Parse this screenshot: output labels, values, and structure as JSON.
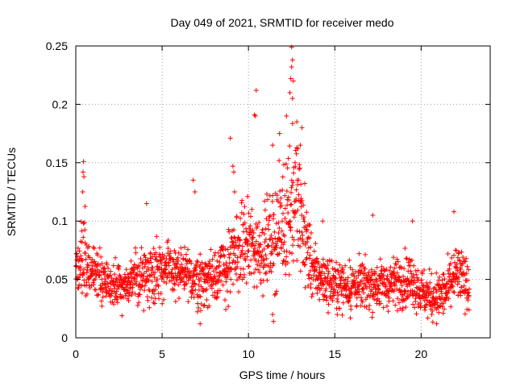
{
  "chart_data": {
    "type": "scatter",
    "title": "Day 049 of 2021, SRMTID for receiver medo",
    "xlabel": "GPS time / hours",
    "ylabel": "SRMTID / TECUs",
    "xlim": [
      0,
      24
    ],
    "ylim": [
      0,
      0.25
    ],
    "xticks": [
      "0",
      "5",
      "10",
      "15",
      "20"
    ],
    "xtick_values": [
      0,
      5,
      10,
      15,
      20
    ],
    "yticks": [
      "0",
      "0.05",
      "0.1",
      "0.15",
      "0.2",
      "0.25"
    ],
    "ytick_values": [
      0,
      0.05,
      0.1,
      0.15,
      0.2,
      0.25
    ],
    "grid": true,
    "marker": "plus",
    "color": "#ff0000",
    "series": [
      {
        "name": "medo",
        "profile_hours": [
          0,
          0.3,
          0.5,
          0.8,
          1.2,
          2,
          3,
          4,
          5,
          6,
          7,
          7.5,
          8,
          8.8,
          9.2,
          9.6,
          10,
          10.5,
          11,
          11.5,
          12,
          12.4,
          12.8,
          13.2,
          13.8,
          15,
          16,
          17,
          18,
          19,
          19.5,
          20,
          20.5,
          21,
          21.5,
          22,
          22.4,
          22.8
        ],
        "profile_median": [
          0.06,
          0.065,
          0.07,
          0.06,
          0.055,
          0.045,
          0.045,
          0.055,
          0.06,
          0.055,
          0.05,
          0.05,
          0.055,
          0.06,
          0.07,
          0.08,
          0.08,
          0.075,
          0.08,
          0.085,
          0.1,
          0.115,
          0.12,
          0.09,
          0.055,
          0.045,
          0.045,
          0.045,
          0.045,
          0.05,
          0.05,
          0.04,
          0.035,
          0.035,
          0.04,
          0.055,
          0.05,
          0.045
        ],
        "profile_spread": [
          0.018,
          0.025,
          0.03,
          0.02,
          0.02,
          0.018,
          0.018,
          0.022,
          0.022,
          0.02,
          0.02,
          0.022,
          0.022,
          0.025,
          0.03,
          0.03,
          0.03,
          0.03,
          0.03,
          0.035,
          0.045,
          0.055,
          0.05,
          0.04,
          0.02,
          0.018,
          0.018,
          0.018,
          0.018,
          0.02,
          0.02,
          0.018,
          0.018,
          0.018,
          0.02,
          0.022,
          0.02,
          0.018
        ],
        "highlights": [
          {
            "x": 0.45,
            "y": 0.151
          },
          {
            "x": 0.42,
            "y": 0.142
          },
          {
            "x": 0.47,
            "y": 0.138
          },
          {
            "x": 0.4,
            "y": 0.125
          },
          {
            "x": 6.8,
            "y": 0.135
          },
          {
            "x": 6.9,
            "y": 0.125
          },
          {
            "x": 8.95,
            "y": 0.171
          },
          {
            "x": 9.1,
            "y": 0.147
          },
          {
            "x": 9.15,
            "y": 0.142
          },
          {
            "x": 9.2,
            "y": 0.125
          },
          {
            "x": 10.45,
            "y": 0.212
          },
          {
            "x": 10.35,
            "y": 0.191
          },
          {
            "x": 10.4,
            "y": 0.19
          },
          {
            "x": 12.5,
            "y": 0.249
          },
          {
            "x": 12.55,
            "y": 0.238
          },
          {
            "x": 12.5,
            "y": 0.232
          },
          {
            "x": 12.45,
            "y": 0.222
          },
          {
            "x": 12.6,
            "y": 0.22
          },
          {
            "x": 12.4,
            "y": 0.21
          },
          {
            "x": 12.55,
            "y": 0.205
          },
          {
            "x": 12.2,
            "y": 0.19
          },
          {
            "x": 12.8,
            "y": 0.185
          },
          {
            "x": 13.1,
            "y": 0.18
          },
          {
            "x": 11.8,
            "y": 0.175
          },
          {
            "x": 13.0,
            "y": 0.165
          },
          {
            "x": 11.4,
            "y": 0.165
          },
          {
            "x": 12.7,
            "y": 0.15
          },
          {
            "x": 4.1,
            "y": 0.115
          },
          {
            "x": 10.2,
            "y": 0.11
          },
          {
            "x": 17.2,
            "y": 0.105
          },
          {
            "x": 19.5,
            "y": 0.1
          },
          {
            "x": 21.9,
            "y": 0.108
          },
          {
            "x": 14.3,
            "y": 0.1
          },
          {
            "x": 11.4,
            "y": 0.02
          },
          {
            "x": 11.45,
            "y": 0.014
          },
          {
            "x": 7.2,
            "y": 0.012
          },
          {
            "x": 20.9,
            "y": 0.012
          },
          {
            "x": 15.9,
            "y": 0.017
          }
        ]
      }
    ]
  }
}
